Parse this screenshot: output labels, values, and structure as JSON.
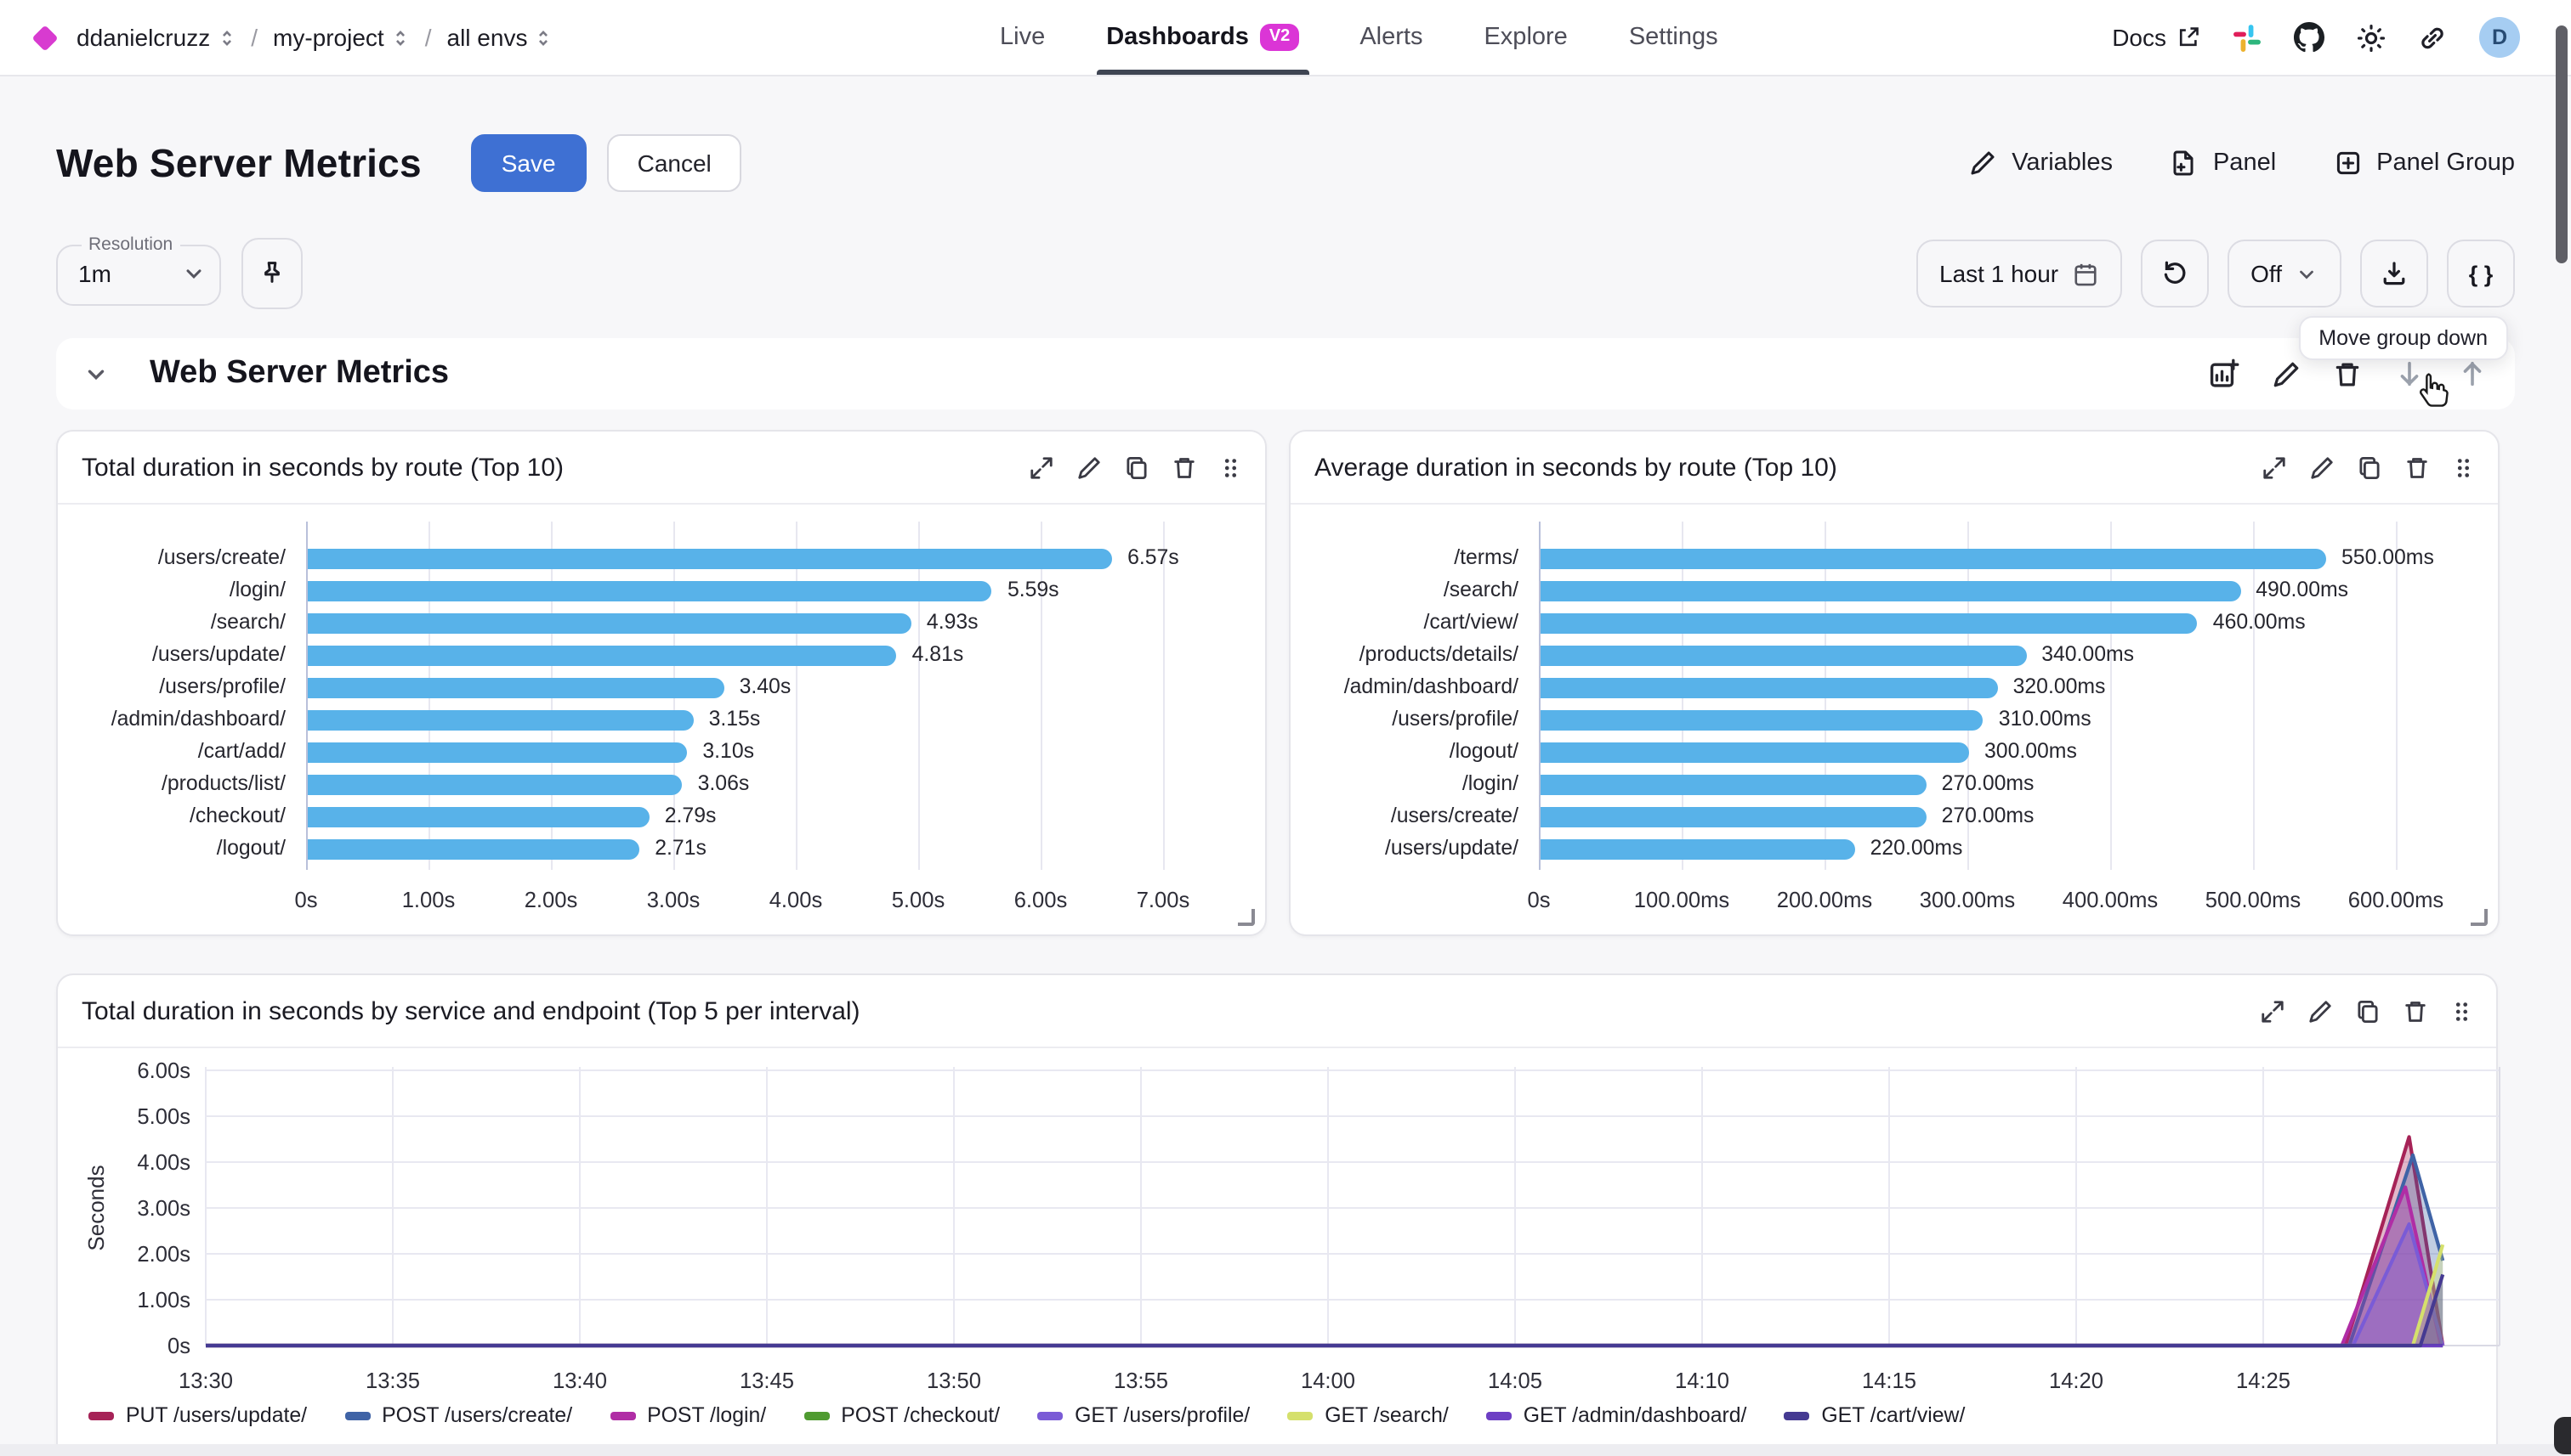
{
  "topbar": {
    "org": "ddanielcruzz",
    "sep": "/",
    "project": "my-project",
    "env": "all envs",
    "nav": [
      "Live",
      "Dashboards",
      "Alerts",
      "Explore",
      "Settings"
    ],
    "badge": "V2",
    "docs": "Docs",
    "avatar_initial": "D"
  },
  "page_header": {
    "title": "Web Server Metrics",
    "save": "Save",
    "cancel": "Cancel",
    "variables": "Variables",
    "panel": "Panel",
    "panel_group": "Panel Group"
  },
  "controls": {
    "resolution_label": "Resolution",
    "resolution_value": "1m",
    "time_range": "Last 1 hour",
    "refresh_mode": "Off",
    "code_button": "{ }",
    "tooltip": "Move group down"
  },
  "section": {
    "title": "Web Server Metrics"
  },
  "colors": {
    "accent_blue": "#3e70d3",
    "brand_magenta": "#db35d6",
    "bar_blue": "#58b2e9"
  },
  "chart_data": [
    {
      "type": "bar",
      "orientation": "horizontal",
      "title": "Total duration in seconds by route (Top 10)",
      "categories": [
        "/users/create/",
        "/login/",
        "/search/",
        "/users/update/",
        "/users/profile/",
        "/admin/dashboard/",
        "/cart/add/",
        "/products/list/",
        "/checkout/",
        "/logout/"
      ],
      "values": [
        6.57,
        5.59,
        4.93,
        4.81,
        3.4,
        3.15,
        3.1,
        3.06,
        2.79,
        2.71
      ],
      "value_labels": [
        "6.57s",
        "5.59s",
        "4.93s",
        "4.81s",
        "3.40s",
        "3.15s",
        "3.10s",
        "3.06s",
        "2.79s",
        "2.71s"
      ],
      "bar_color": "#58b2e9",
      "xticks": {
        "labels": [
          "0s",
          "1.00s",
          "2.00s",
          "3.00s",
          "4.00s",
          "5.00s",
          "6.00s",
          "7.00s"
        ],
        "values": [
          0,
          1,
          2,
          3,
          4,
          5,
          6,
          7
        ]
      },
      "xmax": 7
    },
    {
      "type": "bar",
      "orientation": "horizontal",
      "title": "Average duration in seconds by route (Top 10)",
      "categories": [
        "/terms/",
        "/search/",
        "/cart/view/",
        "/products/details/",
        "/admin/dashboard/",
        "/users/profile/",
        "/logout/",
        "/login/",
        "/users/create/",
        "/users/update/"
      ],
      "values": [
        550,
        490,
        460,
        340,
        320,
        310,
        300,
        270,
        270,
        220
      ],
      "value_labels": [
        "550.00ms",
        "490.00ms",
        "460.00ms",
        "340.00ms",
        "320.00ms",
        "310.00ms",
        "300.00ms",
        "270.00ms",
        "270.00ms",
        "220.00ms"
      ],
      "bar_color": "#58b2e9",
      "xticks": {
        "labels": [
          "0s",
          "100.00ms",
          "200.00ms",
          "300.00ms",
          "400.00ms",
          "500.00ms",
          "600.00ms"
        ],
        "values": [
          0,
          100,
          200,
          300,
          400,
          500,
          600
        ]
      },
      "xmax": 600
    },
    {
      "type": "area",
      "title": "Total duration in seconds by service and endpoint (Top 5 per interval)",
      "ylabel": "Seconds",
      "ylim": [
        0,
        6.3
      ],
      "yticks": {
        "labels": [
          "0s",
          "1.00s",
          "2.00s",
          "3.00s",
          "4.00s",
          "5.00s",
          "6.00s"
        ],
        "values": [
          0,
          1,
          2,
          3,
          4,
          5,
          6
        ]
      },
      "xticks": {
        "labels": [
          "13:30",
          "13:35",
          "13:40",
          "13:45",
          "13:50",
          "13:55",
          "14:00",
          "14:05",
          "14:10",
          "14:15",
          "14:20",
          "14:25"
        ],
        "minutes": [
          0,
          5,
          10,
          15,
          20,
          25,
          30,
          35,
          40,
          45,
          50,
          55
        ]
      },
      "x_domain_minutes": [
        0,
        59.8
      ],
      "series": [
        {
          "name": "PUT /users/update/",
          "color": "#a62357",
          "points": [
            [
              0,
              0
            ],
            [
              57.2,
              0
            ],
            [
              58.9,
              4.55
            ],
            [
              59.8,
              0
            ]
          ]
        },
        {
          "name": "POST /users/create/",
          "color": "#3f63a6",
          "points": [
            [
              0,
              0
            ],
            [
              57.3,
              0
            ],
            [
              59.0,
              4.15
            ],
            [
              59.8,
              1.85
            ]
          ]
        },
        {
          "name": "POST /login/",
          "color": "#b02da5",
          "points": [
            [
              0,
              0
            ],
            [
              57.1,
              0
            ],
            [
              58.8,
              3.45
            ],
            [
              59.75,
              0
            ]
          ]
        },
        {
          "name": "POST /checkout/",
          "color": "#4f9b31",
          "points": [
            [
              0,
              0
            ],
            [
              59.8,
              0
            ]
          ]
        },
        {
          "name": "GET /users/profile/",
          "color": "#7a5bd6",
          "points": [
            [
              0,
              0
            ],
            [
              57.4,
              0
            ],
            [
              58.9,
              2.65
            ],
            [
              59.8,
              0
            ]
          ]
        },
        {
          "name": "GET /search/",
          "color": "#d5e06c",
          "points": [
            [
              0,
              0
            ],
            [
              59.0,
              0
            ],
            [
              59.8,
              2.2
            ]
          ]
        },
        {
          "name": "GET /admin/dashboard/",
          "color": "#6d3fc4",
          "points": [
            [
              0,
              0
            ],
            [
              59.8,
              0
            ]
          ]
        },
        {
          "name": "GET /cart/view/",
          "color": "#453a92",
          "points": [
            [
              0,
              0
            ],
            [
              59.2,
              0
            ],
            [
              59.8,
              1.55
            ]
          ]
        }
      ]
    }
  ]
}
